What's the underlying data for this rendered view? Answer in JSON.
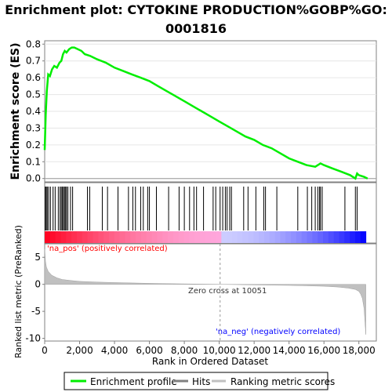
{
  "chart_data": {
    "type": "line",
    "title_line1": "Enrichment plot: CYTOKINE PRODUCTION%GOBP%GO:",
    "title_line2": "0001816",
    "es_panel": {
      "ylabel": "Enrichment score (ES)",
      "ylim": [
        -0.02,
        0.82
      ],
      "yticks": [
        "0.0",
        "0.1",
        "0.2",
        "0.3",
        "0.4",
        "0.5",
        "0.6",
        "0.7",
        "0.8"
      ],
      "series": {
        "name": "Enrichment profile",
        "color": "#00ee00",
        "x": [
          0,
          60,
          120,
          200,
          300,
          420,
          550,
          700,
          850,
          950,
          1050,
          1150,
          1250,
          1400,
          1550,
          1700,
          1900,
          2100,
          2300,
          2600,
          3000,
          3500,
          4000,
          4500,
          5000,
          5500,
          6000,
          6500,
          7000,
          7500,
          8000,
          8500,
          9000,
          9500,
          10000,
          10500,
          11000,
          11500,
          12000,
          12500,
          13000,
          13500,
          14000,
          14500,
          15000,
          15500,
          15800,
          16000,
          16500,
          17000,
          17500,
          17800,
          17900,
          18000,
          18300,
          18500
        ],
        "y": [
          0.17,
          0.38,
          0.52,
          0.62,
          0.61,
          0.65,
          0.67,
          0.66,
          0.69,
          0.7,
          0.74,
          0.76,
          0.75,
          0.77,
          0.78,
          0.78,
          0.77,
          0.76,
          0.74,
          0.73,
          0.71,
          0.69,
          0.66,
          0.64,
          0.62,
          0.6,
          0.58,
          0.55,
          0.52,
          0.49,
          0.46,
          0.43,
          0.4,
          0.37,
          0.34,
          0.31,
          0.28,
          0.25,
          0.23,
          0.2,
          0.18,
          0.15,
          0.12,
          0.1,
          0.08,
          0.07,
          0.09,
          0.08,
          0.06,
          0.04,
          0.02,
          0.0,
          0.03,
          0.02,
          0.01,
          0.0
        ]
      }
    },
    "hits_panel": {
      "legend_name": "Hits",
      "hit_positions": [
        40,
        90,
        150,
        230,
        330,
        480,
        600,
        780,
        880,
        950,
        1010,
        1080,
        1130,
        1200,
        1250,
        1330,
        1480,
        1600,
        2450,
        2580,
        3300,
        3600,
        4200,
        4800,
        5050,
        5200,
        5500,
        5650,
        5900,
        6000,
        6400,
        7100,
        7700,
        8000,
        8300,
        8550,
        8700,
        9100,
        9650,
        9800,
        10050,
        10200,
        10350,
        10450,
        10600,
        10700,
        11400,
        11650,
        12100,
        12550,
        12650,
        13300,
        14500,
        15050,
        15300,
        15500,
        15650,
        15750,
        15800,
        15900,
        17200,
        17800,
        17900
      ],
      "positive_label": "'na_pos' (positively correlated)",
      "negative_label": "'na_neg' (negatively correlated)"
    },
    "metric_panel": {
      "ylabel": "Ranked list metric (PreRanked)",
      "legend_name": "Ranking metric scores",
      "ylim": [
        -10.5,
        7.5
      ],
      "yticks": [
        "5",
        "0",
        "-5",
        "-10"
      ],
      "zero_cross_label": "Zero cross at 10051",
      "zero_cross": 10051,
      "x": [
        0,
        50,
        100,
        200,
        400,
        700,
        1000,
        1500,
        2000,
        3000,
        4000,
        5000,
        6000,
        7000,
        8000,
        9000,
        10051,
        11000,
        12000,
        13000,
        14000,
        15000,
        16000,
        16800,
        17400,
        17800,
        18000,
        18100,
        18200,
        18300,
        18400
      ],
      "y": [
        6.5,
        4.2,
        3.2,
        2.4,
        1.7,
        1.2,
        0.9,
        0.7,
        0.55,
        0.42,
        0.33,
        0.26,
        0.19,
        0.13,
        0.08,
        0.04,
        0.0,
        -0.05,
        -0.1,
        -0.15,
        -0.2,
        -0.27,
        -0.36,
        -0.5,
        -0.7,
        -0.95,
        -1.3,
        -1.8,
        -2.6,
        -4.5,
        -9.3
      ]
    },
    "xaxis": {
      "label": "Rank in Ordered Dataset",
      "xlim": [
        0,
        19000
      ],
      "ticks": [
        "0",
        "2,000",
        "4,000",
        "6,000",
        "8,000",
        "10,000",
        "12,000",
        "14,000",
        "16,000",
        "18,000"
      ]
    },
    "legend_placement": "bottom",
    "colors": {
      "pos": "#ff0000",
      "neg": "#0000ff",
      "profile": "#00ee00",
      "metric_fill": "#c0c0c0"
    }
  }
}
